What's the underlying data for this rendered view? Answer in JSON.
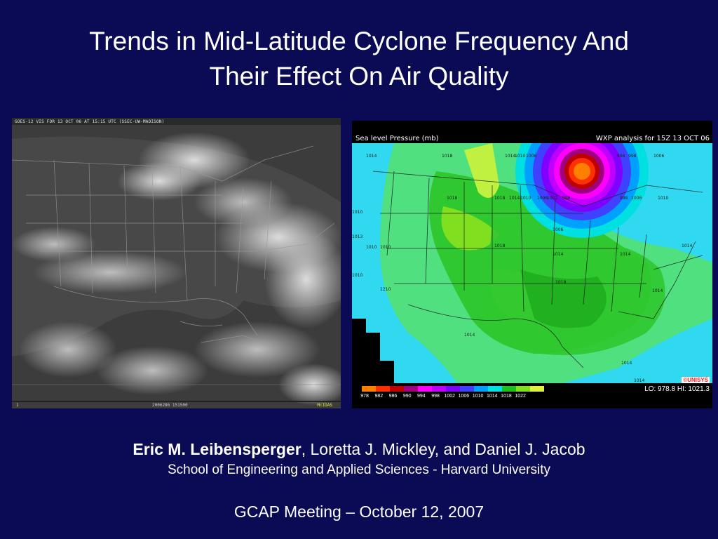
{
  "title": {
    "line1": "Trends in Mid-Latitude Cyclone Frequency And",
    "line2": "Their Effect On Air Quality"
  },
  "satellite_image": {
    "caption_top": "GOES-12 VIS FOR 13 OCT 06 AT 15:15 UTC (SSEC-UW-MADISON)",
    "caption_bottom_left": "1",
    "caption_bottom_center": "2006286 151500",
    "caption_bottom_right": "McIDAS"
  },
  "pressure_map": {
    "title_left": "Sea level Pressure (mb)",
    "title_right": "WXP analysis for 15Z 13 OCT 06",
    "lo_hi": "LO: 978.8   HI: 1021.3",
    "logo": "©UNISYS",
    "legend_labels": [
      "978",
      "982",
      "986",
      "990",
      "994",
      "998",
      "1002",
      "1006",
      "1010",
      "1014",
      "1018",
      "1022"
    ],
    "legend_colors": [
      "#ff8000",
      "#ff3000",
      "#c00000",
      "#a00080",
      "#ff00ff",
      "#c000ff",
      "#8000ff",
      "#4040ff",
      "#00a0ff",
      "#00e0e0",
      "#20c020",
      "#80e020",
      "#e0f040"
    ],
    "isobar_labels": [
      "1014",
      "1018",
      "1014",
      "1010",
      "1006",
      "998",
      "994",
      "998",
      "1006",
      "1018",
      "1014",
      "1010",
      "1006",
      "1002",
      "998",
      "1013",
      "1010",
      "1010",
      "1010",
      "1010",
      "1018",
      "1014",
      "1006",
      "1014",
      "1014",
      "1014",
      "1014",
      "1018",
      "1010",
      "1010",
      "1014",
      "1014",
      "1014",
      "1014"
    ]
  },
  "authors": {
    "lead": "Eric M. Leibensperger",
    "others": ", Loretta J. Mickley, and Daniel J. Jacob"
  },
  "affiliation": "School of Engineering and Applied Sciences - Harvard University",
  "meeting": "GCAP Meeting – October 12, 2007"
}
